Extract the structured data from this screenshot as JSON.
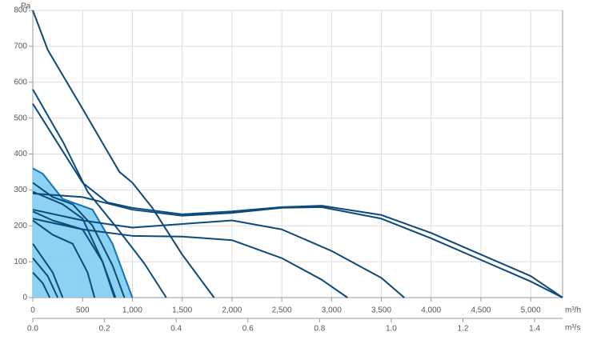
{
  "chart_data": {
    "type": "line",
    "y_label": "Pa",
    "x_label": "m³/h",
    "x2_label": "m³/s",
    "xlim": [
      0,
      5320
    ],
    "ylim": [
      0,
      800
    ],
    "x2lim": [
      0,
      1.478
    ],
    "xticks": [
      0,
      500,
      {
        "value": 1000,
        "label": "1,000"
      },
      {
        "value": 1500,
        "label": "1,500"
      },
      {
        "value": 2000,
        "label": "2,000"
      },
      {
        "value": 2500,
        "label": "2,500"
      },
      {
        "value": 3000,
        "label": "3,000"
      },
      {
        "value": 3500,
        "label": "3,500"
      },
      {
        "value": 4000,
        "label": "4,000"
      },
      {
        "value": 4500,
        "label": "4,500"
      },
      {
        "value": 5000,
        "label": "5,000"
      }
    ],
    "x2ticks": [
      {
        "value": 0,
        "label": "0.0"
      },
      0.2,
      0.4,
      0.6,
      0.8,
      {
        "value": 1,
        "label": "1.0"
      },
      1.2,
      1.4
    ],
    "yticks": [
      0,
      100,
      200,
      300,
      400,
      500,
      600,
      700,
      800
    ],
    "grid": true,
    "series": [
      {
        "color": "#0a75c2",
        "fill": "#7fcdf2",
        "x": [
          0,
          100,
          300,
          500,
          600,
          800,
          1000
        ],
        "values": [
          360,
          345,
          275,
          255,
          245,
          150,
          0
        ]
      },
      {
        "color": "#0d4a7c",
        "x": [
          0,
          150,
          470,
          870,
          1000,
          1200,
          1500,
          1820
        ],
        "values": [
          800,
          690,
          540,
          350,
          320,
          250,
          120,
          0
        ]
      },
      {
        "color": "#0d4a7c",
        "x": [
          0,
          310,
          550,
          870,
          1120,
          1340
        ],
        "values": [
          580,
          430,
          295,
          185,
          95,
          0
        ]
      },
      {
        "color": "#0d4a7c",
        "x": [
          0,
          250,
          500,
          750,
          1000,
          1500,
          2000,
          2500,
          2900,
          3500,
          4000,
          4500,
          5000,
          5320
        ],
        "values": [
          540,
          430,
          320,
          265,
          250,
          232,
          240,
          252,
          256,
          230,
          180,
          120,
          60,
          0
        ]
      },
      {
        "color": "#0d4a7c",
        "x": [
          0,
          500,
          1000,
          1500,
          2000,
          2500,
          2900,
          3500,
          4000,
          4500,
          5000,
          5320
        ],
        "values": [
          290,
          280,
          245,
          228,
          236,
          250,
          252,
          220,
          165,
          105,
          45,
          0
        ]
      },
      {
        "color": "#0d4a7c",
        "x": [
          0,
          500,
          1000,
          1500,
          2000,
          2500,
          3000,
          3500,
          3730
        ],
        "values": [
          245,
          215,
          195,
          205,
          215,
          190,
          130,
          55,
          0
        ]
      },
      {
        "color": "#0d4a7c",
        "x": [
          0,
          500,
          1000,
          1500,
          2000,
          2500,
          2900,
          3160
        ],
        "values": [
          220,
          190,
          172,
          170,
          160,
          110,
          50,
          0
        ]
      },
      {
        "color": "#0d4a7c",
        "x": [
          0,
          200,
          400,
          600,
          800,
          920
        ],
        "values": [
          320,
          280,
          260,
          200,
          90,
          0
        ]
      },
      {
        "color": "#0d4a7c",
        "x": [
          0,
          300,
          500,
          700,
          820
        ],
        "values": [
          295,
          260,
          220,
          100,
          0
        ]
      },
      {
        "color": "#0d4a7c",
        "x": [
          0,
          200,
          500,
          700,
          830
        ],
        "values": [
          240,
          215,
          190,
          100,
          0
        ]
      },
      {
        "color": "#0d4a7c",
        "x": [
          0,
          200,
          400,
          550,
          620
        ],
        "values": [
          215,
          175,
          150,
          70,
          0
        ]
      },
      {
        "color": "#0d4a7c",
        "x": [
          0,
          100,
          200,
          300
        ],
        "values": [
          150,
          110,
          70,
          0
        ]
      },
      {
        "color": "#0d4a7c",
        "x": [
          0,
          150,
          250
        ],
        "values": [
          110,
          60,
          0
        ]
      },
      {
        "color": "#0d4a7c",
        "x": [
          0,
          100,
          170
        ],
        "values": [
          70,
          40,
          0
        ]
      }
    ]
  }
}
